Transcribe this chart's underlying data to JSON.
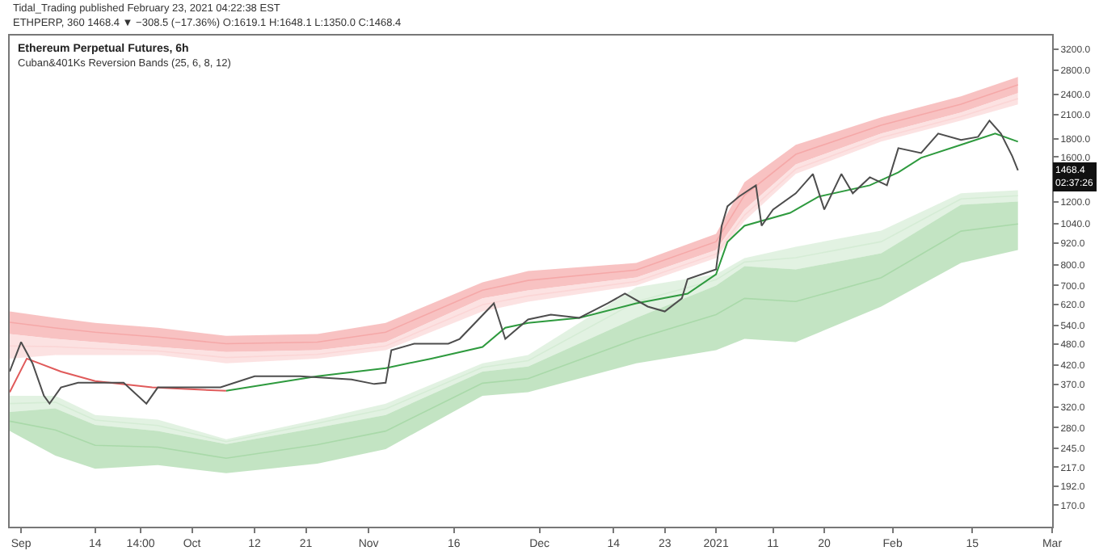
{
  "chart_data": {
    "type": "line",
    "title": "Ethereum Perpetual Futures, 6h",
    "subtitle": "Cuban&401Ks Reversion Bands (25, 6, 8, 12)",
    "annotations": [
      "Tidal_Trading published February 23, 2021 04:22:38 EST",
      "ETHPERP, 360 1468.4 ▼ −308.5 (−17.36%) O:1619.1 H:1648.1 L:1350.0 C:1468.4",
      "1468.4\n02:37:26"
    ],
    "log": true,
    "marker": "none",
    "line_style": "solid",
    "xlim": [
      "2020-08-30",
      "2021-03-01"
    ],
    "xticks": [
      {
        "value": "2020-09-01",
        "label": "Sep"
      },
      {
        "value": "2020-09-14",
        "label": "14"
      },
      {
        "value": "2020-09-22",
        "label": "14:00"
      },
      {
        "value": "2020-10-01",
        "label": "Oct"
      },
      {
        "value": "2020-10-12",
        "label": "12"
      },
      {
        "value": "2020-10-21",
        "label": "21"
      },
      {
        "value": "2020-11-01",
        "label": "Nov"
      },
      {
        "value": "2020-11-16",
        "label": "16"
      },
      {
        "value": "2020-12-01",
        "label": "Dec"
      },
      {
        "value": "2020-12-14",
        "label": "14"
      },
      {
        "value": "2020-12-23",
        "label": "23"
      },
      {
        "value": "2021-01-01",
        "label": "2021"
      },
      {
        "value": "2021-01-11",
        "label": "11"
      },
      {
        "value": "2021-01-20",
        "label": "20"
      },
      {
        "value": "2021-02-01",
        "label": "Feb"
      },
      {
        "value": "2021-02-15",
        "label": "15"
      },
      {
        "value": "2021-03-01",
        "label": "Mar"
      }
    ],
    "ylim": [
      148,
      3500
    ],
    "yticks": [
      {
        "value": 170,
        "label": "170.0"
      },
      {
        "value": 192,
        "label": "192.0"
      },
      {
        "value": 217,
        "label": "217.0"
      },
      {
        "value": 245,
        "label": "245.0"
      },
      {
        "value": 280,
        "label": "280.0"
      },
      {
        "value": 320,
        "label": "320.0"
      },
      {
        "value": 370,
        "label": "370.0"
      },
      {
        "value": 420,
        "label": "420.0"
      },
      {
        "value": 480,
        "label": "480.0"
      },
      {
        "value": 540,
        "label": "540.0"
      },
      {
        "value": 620,
        "label": "620.0"
      },
      {
        "value": 700,
        "label": "700.0"
      },
      {
        "value": 800,
        "label": "800.0"
      },
      {
        "value": 920,
        "label": "920.0"
      },
      {
        "value": 1040,
        "label": "1040.0"
      },
      {
        "value": 1200,
        "label": "1200.0"
      },
      {
        "value": 1600,
        "label": "1600.0"
      },
      {
        "value": 1800,
        "label": "1800.0"
      },
      {
        "value": 2100,
        "label": "2100.0"
      },
      {
        "value": 2400,
        "label": "2400.0"
      },
      {
        "value": 2800,
        "label": "2800.0"
      },
      {
        "value": 3200,
        "label": "3200.0"
      }
    ],
    "series": [
      {
        "color": "#f5a8a8",
        "x": [
          "2020-08-30",
          "2020-09-07",
          "2020-09-14",
          "2020-09-25",
          "2020-10-07",
          "2020-10-23",
          "2020-11-04",
          "2020-11-21",
          "2020-11-29",
          "2020-12-18",
          "2021-01-01",
          "2021-01-06",
          "2021-01-15",
          "2021-01-30",
          "2021-02-13",
          "2021-02-23"
        ],
        "values": [
          552,
          532,
          518,
          502,
          481,
          486,
          518,
          679,
          723,
          773,
          928,
          1252,
          1629,
          1964,
          2249,
          2548
        ],
        "upper": [
          592,
          568,
          550,
          533,
          506,
          512,
          550,
          714,
          768,
          809,
          976,
          1362,
          1731,
          2066,
          2366,
          2681
        ],
        "lower": [
          512,
          496,
          486,
          471,
          456,
          461,
          486,
          644,
          678,
          737,
          879,
          1141,
          1527,
          1862,
          2132,
          2416
        ]
      },
      {
        "color": "#fbd6d6",
        "x": [
          "2020-08-30",
          "2020-09-07",
          "2020-09-14",
          "2020-09-25",
          "2020-10-07",
          "2020-10-23",
          "2020-11-04",
          "2020-11-21",
          "2020-11-29",
          "2020-12-18",
          "2021-01-01",
          "2021-01-06",
          "2021-01-15",
          "2021-01-30",
          "2021-02-13",
          "2021-02-23"
        ],
        "values": [
          474,
          472,
          466,
          459,
          440,
          449,
          474,
          618,
          654,
          718,
          857,
          1101,
          1481,
          1814,
          2078,
          2331
        ],
        "upper": [
          512,
          496,
          486,
          471,
          456,
          461,
          486,
          644,
          678,
          737,
          879,
          1141,
          1527,
          1862,
          2132,
          2416
        ],
        "lower": [
          437,
          447,
          447,
          447,
          424,
          437,
          461,
          592,
          630,
          699,
          835,
          1061,
          1435,
          1767,
          2024,
          2246
        ]
      },
      {
        "color": "#d5ecd5",
        "x": [
          "2020-08-30",
          "2020-09-07",
          "2020-09-14",
          "2020-09-25",
          "2020-10-07",
          "2020-10-23",
          "2020-11-04",
          "2020-11-21",
          "2020-11-29",
          "2020-12-18",
          "2021-01-01",
          "2021-01-06",
          "2021-01-15",
          "2021-01-30",
          "2021-02-13",
          "2021-02-23"
        ],
        "values": [
          327,
          330,
          294,
          284,
          256,
          288,
          316,
          413,
          431,
          630,
          726,
          814,
          837,
          928,
          1222,
          1248
        ],
        "upper": [
          344,
          344,
          304,
          295,
          260,
          295,
          327,
          424,
          447,
          692,
          752,
          835,
          898,
          996,
          1267,
          1293
        ],
        "lower": [
          310,
          317,
          285,
          274,
          252,
          280,
          304,
          402,
          415,
          568,
          699,
          792,
          776,
          861,
          1177,
          1202
        ]
      },
      {
        "color": "#a9d9a9",
        "x": [
          "2020-08-30",
          "2020-09-07",
          "2020-09-14",
          "2020-09-25",
          "2020-10-07",
          "2020-10-23",
          "2020-11-04",
          "2020-11-21",
          "2020-11-29",
          "2020-12-18",
          "2021-01-01",
          "2021-01-06",
          "2021-01-15",
          "2021-01-30",
          "2021-02-13",
          "2021-02-23"
        ],
        "values": [
          292,
          276,
          250,
          247,
          230,
          251,
          274,
          373,
          384,
          496,
          580,
          644,
          631,
          736,
          993,
          1040
        ],
        "upper": [
          310,
          317,
          285,
          274,
          252,
          280,
          304,
          402,
          415,
          568,
          699,
          792,
          776,
          861,
          1177,
          1202
        ],
        "lower": [
          274,
          234,
          215,
          220,
          209,
          222,
          244,
          344,
          352,
          424,
          461,
          496,
          486,
          611,
          809,
          879
        ]
      },
      {
        "type": "line",
        "color": "#e05a5a",
        "x": [
          "2020-08-30",
          "2020-09-02",
          "2020-09-08",
          "2020-09-14",
          "2020-09-24",
          "2020-10-07"
        ],
        "values": [
          352,
          437,
          402,
          378,
          363,
          355
        ]
      },
      {
        "type": "line",
        "color": "#2e9a3e",
        "x": [
          "2020-10-07",
          "2020-10-23",
          "2020-11-04",
          "2020-11-12",
          "2020-11-21",
          "2020-11-25",
          "2020-11-29",
          "2020-12-08",
          "2020-12-18",
          "2020-12-27",
          "2021-01-01",
          "2021-01-03",
          "2021-01-06",
          "2021-01-14",
          "2021-01-19",
          "2021-01-28",
          "2021-02-02",
          "2021-02-06",
          "2021-02-13",
          "2021-02-19",
          "2021-02-23"
        ],
        "values": [
          355,
          390,
          411,
          437,
          471,
          533,
          550,
          568,
          624,
          664,
          752,
          926,
          1028,
          1117,
          1240,
          1334,
          1450,
          1592,
          1731,
          1862,
          1767
        ]
      },
      {
        "type": "line",
        "color": "#4d4d4d",
        "x": [
          "2020-08-30",
          "2020-09-01",
          "2020-09-03",
          "2020-09-05",
          "2020-09-06",
          "2020-09-08",
          "2020-09-11",
          "2020-09-14",
          "2020-09-19",
          "2020-09-23",
          "2020-09-25",
          "2020-10-01",
          "2020-10-06",
          "2020-10-12",
          "2020-10-20",
          "2020-10-29",
          "2020-11-02",
          "2020-11-04",
          "2020-11-05",
          "2020-11-09",
          "2020-11-15",
          "2020-11-17",
          "2020-11-23",
          "2020-11-25",
          "2020-11-29",
          "2020-12-03",
          "2020-12-08",
          "2020-12-13",
          "2020-12-16",
          "2020-12-20",
          "2020-12-23",
          "2020-12-26",
          "2020-12-27",
          "2021-01-01",
          "2021-01-02",
          "2021-01-03",
          "2021-01-05",
          "2021-01-08",
          "2021-01-09",
          "2021-01-11",
          "2021-01-15",
          "2021-01-18",
          "2021-01-20",
          "2021-01-23",
          "2021-01-25",
          "2021-01-28",
          "2021-01-31",
          "2021-02-02",
          "2021-02-06",
          "2021-02-09",
          "2021-02-13",
          "2021-02-16",
          "2021-02-18",
          "2021-02-20",
          "2021-02-22",
          "2021-02-23"
        ],
        "values": [
          402,
          486,
          424,
          344,
          327,
          363,
          374,
          374,
          374,
          327,
          363,
          363,
          363,
          390,
          390,
          382,
          371,
          374,
          461,
          481,
          481,
          496,
          624,
          496,
          562,
          580,
          568,
          624,
          664,
          611,
          592,
          644,
          729,
          776,
          1028,
          1165,
          1240,
          1334,
          1028,
          1141,
          1267,
          1435,
          1141,
          1435,
          1267,
          1405,
          1334,
          1695,
          1643,
          1862,
          1786,
          1823,
          2024,
          1862,
          1609,
          1468.4
        ]
      }
    ]
  }
}
